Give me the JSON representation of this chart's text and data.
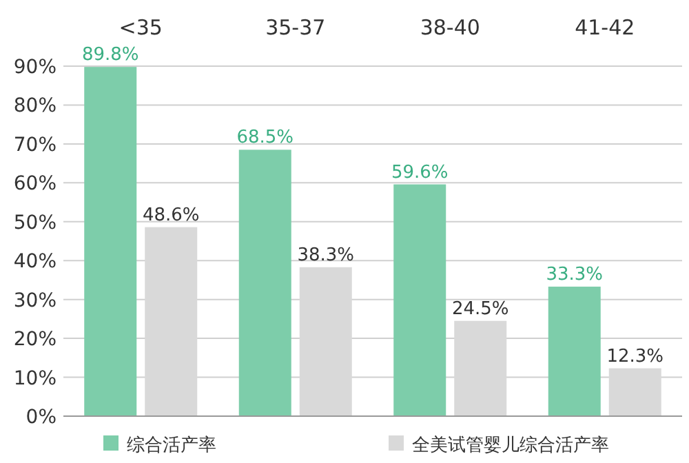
{
  "chart_data": {
    "type": "bar",
    "categories": [
      "<35",
      "35-37",
      "38-40",
      "41-42"
    ],
    "series": [
      {
        "name": "综合活产率",
        "color": "#7dcdaa",
        "values": [
          89.8,
          68.5,
          59.6,
          33.3
        ],
        "value_labels": [
          "89.8%",
          "68.5%",
          "59.6%",
          "33.3%"
        ]
      },
      {
        "name": "全美试管婴儿综合活产率",
        "color": "#d9d9d9",
        "values": [
          48.6,
          38.3,
          24.5,
          12.3
        ],
        "value_labels": [
          "48.6%",
          "38.3%",
          "24.5%",
          "12.3%"
        ]
      }
    ],
    "ylim": [
      0,
      90
    ],
    "yticks": [
      {
        "value": 0,
        "label": "0%"
      },
      {
        "value": 10,
        "label": "10%"
      },
      {
        "value": 20,
        "label": "20%"
      },
      {
        "value": 30,
        "label": "30%"
      },
      {
        "value": 40,
        "label": "40%"
      },
      {
        "value": 50,
        "label": "50%"
      },
      {
        "value": 60,
        "label": "60%"
      },
      {
        "value": 70,
        "label": "70%"
      },
      {
        "value": 80,
        "label": "80%"
      },
      {
        "value": 90,
        "label": "90%"
      }
    ],
    "grid": "y",
    "legend": "bottom"
  }
}
